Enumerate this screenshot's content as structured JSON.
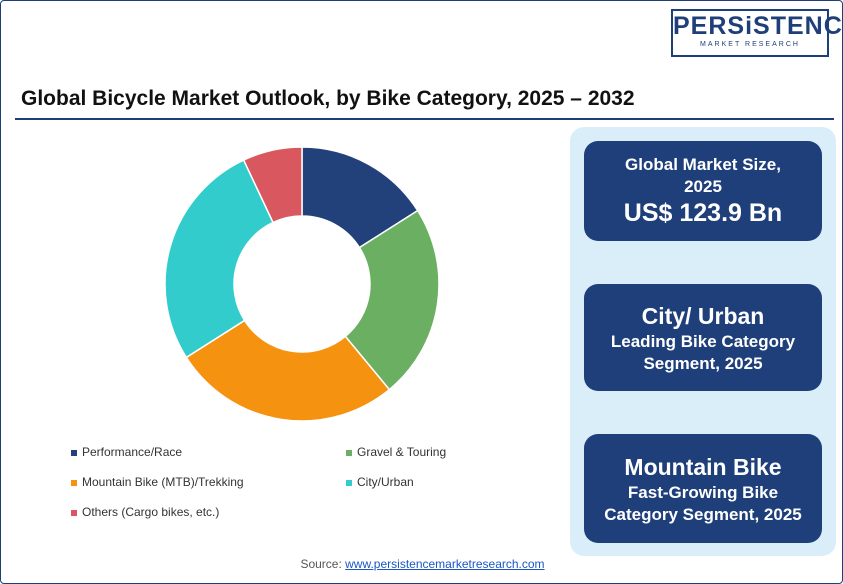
{
  "header": {
    "logo": "PERSiSTENCE",
    "logo_sub": "MARKET RESEARCH"
  },
  "chart_data": {
    "type": "pie",
    "donut": true,
    "title": "Global Bicycle Market Outlook, by Bike Category, 2025 – 2032",
    "categories": [
      "Performance/Race",
      "Gravel & Touring",
      "Mountain Bike (MTB)/Trekking",
      "City/Urban",
      "Others (Cargo bikes, etc.)"
    ],
    "values": [
      16,
      23,
      27,
      27,
      7
    ],
    "colors": [
      "#22407a",
      "#6aaf62",
      "#f59210",
      "#33cccc",
      "#d9575e"
    ]
  },
  "panels": [
    {
      "lines": [
        "Global Market Size, 2025",
        "US$ 123.9 Bn"
      ]
    },
    {
      "lines": [
        "City/ Urban",
        "Leading Bike Category Segment, 2025"
      ]
    },
    {
      "lines": [
        "Mountain Bike",
        "Fast-Growing Bike Category Segment, 2025"
      ]
    }
  ],
  "source": {
    "label": "Source:",
    "link": "www.persistencemarketresearch.com"
  }
}
